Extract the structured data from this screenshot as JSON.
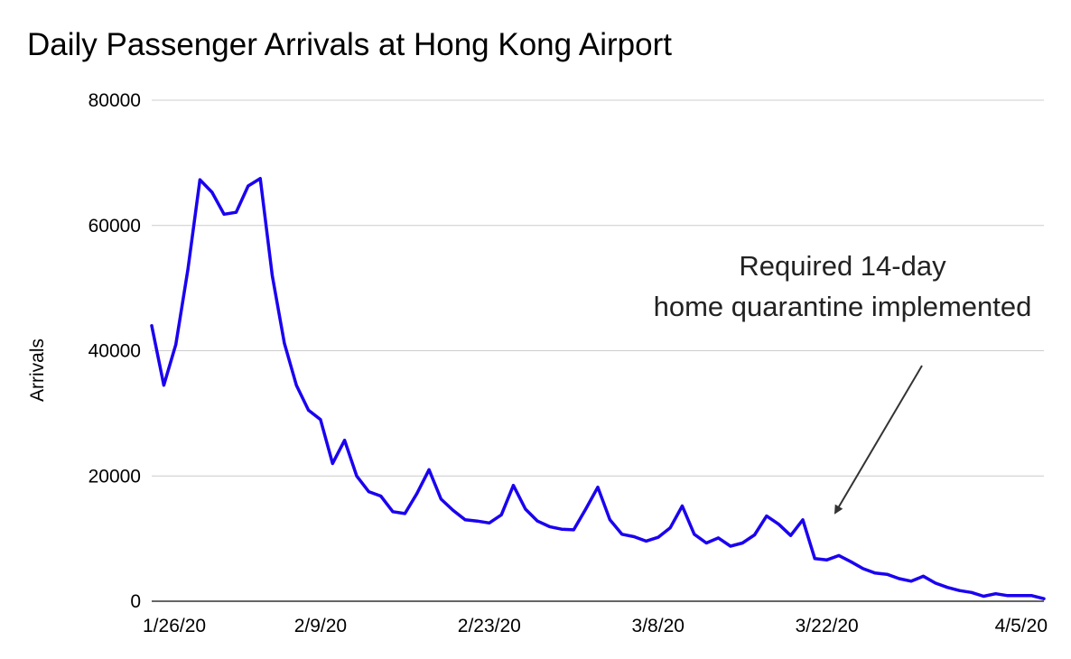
{
  "chart_data": {
    "type": "line",
    "title": "Daily Passenger Arrivals at Hong Kong Airport",
    "xlabel": "",
    "ylabel": "Arrivals",
    "ylim": [
      0,
      80000
    ],
    "yticks": [
      "0",
      "20000",
      "40000",
      "60000",
      "80000"
    ],
    "xticks": [
      {
        "label": "1/26/20",
        "index": 0
      },
      {
        "label": "2/9/20",
        "index": 14
      },
      {
        "label": "2/23/20",
        "index": 28
      },
      {
        "label": "3/8/20",
        "index": 42
      },
      {
        "label": "3/22/20",
        "index": 56
      },
      {
        "label": "4/5/20",
        "index": 70
      }
    ],
    "grid": true,
    "legend": "none",
    "series_color": "#1a00f0",
    "series": [
      {
        "values": [
          44000,
          34500,
          41000,
          53000,
          67300,
          65300,
          61800,
          62100,
          66300,
          67500,
          52000,
          41200,
          34500,
          30500,
          29000,
          22000,
          25700,
          20000,
          17500,
          16800,
          14300,
          14000,
          17200,
          21000,
          16300,
          14500,
          13000,
          12800,
          12500,
          13800,
          18500,
          14700,
          12800,
          11900,
          11500,
          11400,
          14700,
          18200,
          13000,
          10700,
          10300,
          9600,
          10200,
          11700,
          15200,
          10700,
          9300,
          10100,
          8800,
          9300,
          10600,
          13600,
          12300,
          10500,
          13000,
          6800,
          6600,
          7300,
          6300,
          5200,
          4500,
          4300,
          3600,
          3200,
          4000,
          2900,
          2200,
          1700,
          1400,
          800,
          1200,
          900,
          900,
          900,
          400
        ]
      }
    ],
    "annotation": {
      "lines": [
        "Required 14-day",
        "home quarantine implemented"
      ]
    }
  }
}
